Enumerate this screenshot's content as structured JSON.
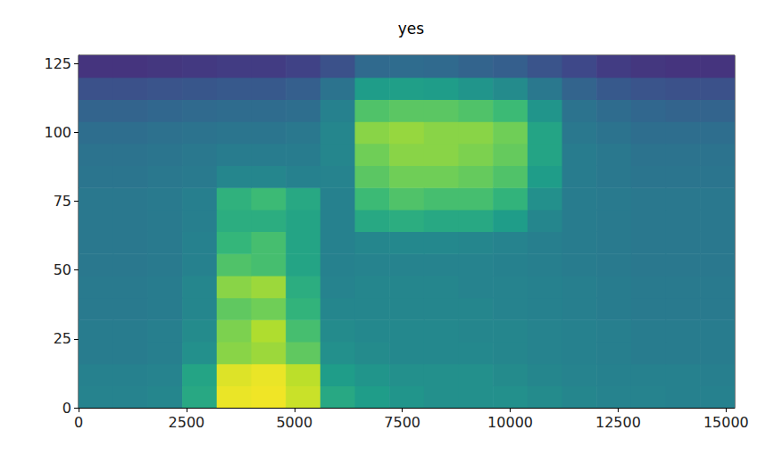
{
  "chart_data": {
    "type": "heatmap",
    "title": "yes",
    "x_bins": [
      0,
      800,
      1600,
      2400,
      3200,
      4000,
      4800,
      5600,
      6400,
      7200,
      8000,
      8800,
      9600,
      10400,
      11200,
      12000,
      12800,
      13600,
      14400,
      15200
    ],
    "y_bins": [
      0,
      8,
      16,
      24,
      32,
      40,
      48,
      56,
      64,
      72,
      80,
      88,
      96,
      104,
      112,
      120,
      128
    ],
    "values": [
      [
        0.45,
        0.45,
        0.46,
        0.6,
        0.97,
        0.98,
        0.92,
        0.6,
        0.55,
        0.52,
        0.5,
        0.5,
        0.5,
        0.48,
        0.46,
        0.45,
        0.45,
        0.44,
        0.44
      ],
      [
        0.44,
        0.44,
        0.45,
        0.58,
        0.95,
        0.97,
        0.9,
        0.55,
        0.52,
        0.5,
        0.5,
        0.5,
        0.48,
        0.46,
        0.45,
        0.44,
        0.44,
        0.44,
        0.43
      ],
      [
        0.42,
        0.42,
        0.43,
        0.5,
        0.82,
        0.85,
        0.75,
        0.5,
        0.48,
        0.47,
        0.47,
        0.47,
        0.46,
        0.45,
        0.44,
        0.43,
        0.42,
        0.42,
        0.42
      ],
      [
        0.42,
        0.42,
        0.43,
        0.48,
        0.8,
        0.88,
        0.7,
        0.48,
        0.47,
        0.47,
        0.47,
        0.46,
        0.46,
        0.45,
        0.44,
        0.43,
        0.42,
        0.42,
        0.42
      ],
      [
        0.41,
        0.41,
        0.42,
        0.46,
        0.75,
        0.78,
        0.65,
        0.46,
        0.46,
        0.46,
        0.46,
        0.46,
        0.45,
        0.44,
        0.43,
        0.42,
        0.41,
        0.41,
        0.41
      ],
      [
        0.41,
        0.41,
        0.42,
        0.46,
        0.82,
        0.85,
        0.62,
        0.45,
        0.46,
        0.46,
        0.46,
        0.45,
        0.45,
        0.44,
        0.43,
        0.42,
        0.41,
        0.41,
        0.41
      ],
      [
        0.4,
        0.4,
        0.41,
        0.44,
        0.72,
        0.7,
        0.58,
        0.44,
        0.45,
        0.45,
        0.45,
        0.45,
        0.44,
        0.43,
        0.42,
        0.41,
        0.4,
        0.4,
        0.4
      ],
      [
        0.4,
        0.4,
        0.41,
        0.44,
        0.66,
        0.7,
        0.58,
        0.44,
        0.46,
        0.47,
        0.47,
        0.46,
        0.45,
        0.43,
        0.42,
        0.41,
        0.4,
        0.4,
        0.4
      ],
      [
        0.4,
        0.4,
        0.41,
        0.43,
        0.62,
        0.62,
        0.58,
        0.44,
        0.6,
        0.62,
        0.6,
        0.6,
        0.55,
        0.46,
        0.42,
        0.41,
        0.4,
        0.4,
        0.4
      ],
      [
        0.4,
        0.4,
        0.41,
        0.43,
        0.64,
        0.68,
        0.6,
        0.44,
        0.68,
        0.72,
        0.7,
        0.7,
        0.65,
        0.5,
        0.42,
        0.41,
        0.4,
        0.4,
        0.4
      ],
      [
        0.39,
        0.39,
        0.4,
        0.41,
        0.46,
        0.46,
        0.44,
        0.45,
        0.74,
        0.78,
        0.78,
        0.76,
        0.72,
        0.55,
        0.42,
        0.4,
        0.39,
        0.39,
        0.39
      ],
      [
        0.38,
        0.38,
        0.39,
        0.4,
        0.42,
        0.42,
        0.42,
        0.46,
        0.78,
        0.82,
        0.82,
        0.8,
        0.76,
        0.58,
        0.42,
        0.4,
        0.38,
        0.38,
        0.38
      ],
      [
        0.36,
        0.36,
        0.37,
        0.38,
        0.39,
        0.39,
        0.4,
        0.46,
        0.82,
        0.84,
        0.82,
        0.82,
        0.78,
        0.58,
        0.4,
        0.38,
        0.36,
        0.36,
        0.36
      ],
      [
        0.32,
        0.32,
        0.33,
        0.34,
        0.35,
        0.35,
        0.36,
        0.44,
        0.72,
        0.74,
        0.74,
        0.72,
        0.68,
        0.52,
        0.38,
        0.35,
        0.33,
        0.32,
        0.32
      ],
      [
        0.25,
        0.25,
        0.26,
        0.27,
        0.28,
        0.28,
        0.3,
        0.38,
        0.55,
        0.56,
        0.55,
        0.52,
        0.48,
        0.4,
        0.32,
        0.28,
        0.26,
        0.25,
        0.25
      ],
      [
        0.15,
        0.15,
        0.16,
        0.17,
        0.18,
        0.18,
        0.2,
        0.25,
        0.34,
        0.35,
        0.34,
        0.32,
        0.3,
        0.26,
        0.22,
        0.18,
        0.16,
        0.15,
        0.15
      ]
    ],
    "color_range": [
      0,
      1
    ],
    "xlim": [
      0,
      15200
    ],
    "xticks": [
      0,
      2500,
      5000,
      7500,
      10000,
      12500,
      15000
    ],
    "ylim": [
      0,
      128
    ],
    "yticks": [
      0,
      25,
      50,
      75,
      100,
      125
    ],
    "grid": false
  }
}
